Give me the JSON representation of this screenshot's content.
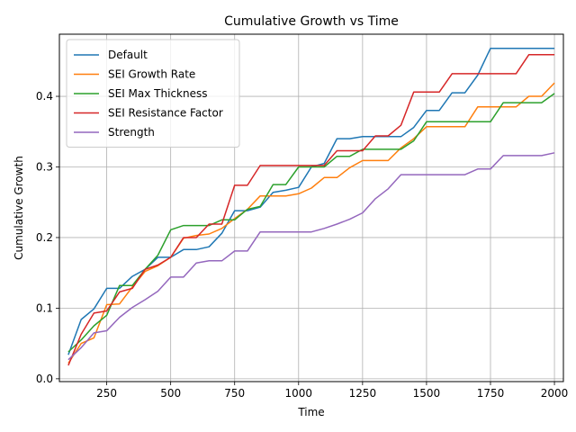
{
  "chart_data": {
    "type": "line",
    "title": "Cumulative Growth vs Time",
    "xlabel": "Time",
    "ylabel": "Cumulative Growth",
    "xlim": [
      65,
      2035
    ],
    "ylim": [
      -0.004,
      0.488
    ],
    "xticks": [
      250,
      500,
      750,
      1000,
      1250,
      1500,
      1750,
      2000
    ],
    "yticks": [
      0.0,
      0.1,
      0.2,
      0.3,
      0.4
    ],
    "xtick_labels": [
      "250",
      "500",
      "750",
      "1000",
      "1250",
      "1500",
      "1750",
      "2000"
    ],
    "ytick_labels": [
      "0.0",
      "0.1",
      "0.2",
      "0.3",
      "0.4"
    ],
    "grid": true,
    "legend_position": "top-left",
    "x": [
      100,
      150,
      200,
      250,
      300,
      350,
      400,
      450,
      500,
      550,
      600,
      650,
      700,
      750,
      800,
      850,
      900,
      950,
      1000,
      1050,
      1100,
      1150,
      1200,
      1250,
      1300,
      1350,
      1400,
      1450,
      1500,
      1550,
      1600,
      1650,
      1700,
      1750,
      1800,
      1850,
      1900,
      1950,
      2000
    ],
    "series": [
      {
        "name": "Default",
        "color": "#1f77b4",
        "values": [
          0.034,
          0.084,
          0.099,
          0.128,
          0.128,
          0.145,
          0.155,
          0.172,
          0.172,
          0.183,
          0.183,
          0.187,
          0.206,
          0.238,
          0.238,
          0.243,
          0.264,
          0.267,
          0.271,
          0.3,
          0.305,
          0.34,
          0.34,
          0.343,
          0.343,
          0.343,
          0.343,
          0.356,
          0.38,
          0.38,
          0.405,
          0.405,
          0.43,
          0.468,
          0.468,
          0.468,
          0.468,
          0.468,
          0.468
        ]
      },
      {
        "name": "SEI Growth Rate",
        "color": "#ff7f0e",
        "values": [
          0.022,
          0.05,
          0.058,
          0.105,
          0.106,
          0.13,
          0.152,
          0.16,
          0.172,
          0.199,
          0.203,
          0.205,
          0.213,
          0.227,
          0.24,
          0.259,
          0.259,
          0.259,
          0.262,
          0.27,
          0.285,
          0.285,
          0.299,
          0.309,
          0.309,
          0.309,
          0.327,
          0.34,
          0.357,
          0.357,
          0.357,
          0.357,
          0.385,
          0.385,
          0.385,
          0.385,
          0.4,
          0.4,
          0.419
        ]
      },
      {
        "name": "SEI Max Thickness",
        "color": "#2ca02c",
        "values": [
          0.038,
          0.055,
          0.075,
          0.09,
          0.132,
          0.132,
          0.155,
          0.175,
          0.211,
          0.217,
          0.217,
          0.217,
          0.225,
          0.225,
          0.24,
          0.244,
          0.275,
          0.275,
          0.3,
          0.3,
          0.3,
          0.315,
          0.315,
          0.325,
          0.325,
          0.325,
          0.325,
          0.337,
          0.364,
          0.364,
          0.364,
          0.364,
          0.364,
          0.364,
          0.391,
          0.391,
          0.391,
          0.391,
          0.404
        ]
      },
      {
        "name": "SEI Resistance Factor",
        "color": "#d62728",
        "values": [
          0.019,
          0.063,
          0.093,
          0.096,
          0.123,
          0.128,
          0.155,
          0.161,
          0.172,
          0.2,
          0.2,
          0.219,
          0.219,
          0.274,
          0.274,
          0.302,
          0.302,
          0.302,
          0.302,
          0.302,
          0.302,
          0.323,
          0.323,
          0.323,
          0.344,
          0.344,
          0.359,
          0.406,
          0.406,
          0.406,
          0.432,
          0.432,
          0.432,
          0.432,
          0.432,
          0.432,
          0.459,
          0.459,
          0.459
        ]
      },
      {
        "name": "Strength",
        "color": "#9467bd",
        "values": [
          0.027,
          0.044,
          0.065,
          0.068,
          0.087,
          0.101,
          0.112,
          0.124,
          0.144,
          0.144,
          0.164,
          0.167,
          0.167,
          0.181,
          0.181,
          0.208,
          0.208,
          0.208,
          0.208,
          0.208,
          0.213,
          0.219,
          0.226,
          0.235,
          0.255,
          0.269,
          0.289,
          0.289,
          0.289,
          0.289,
          0.289,
          0.289,
          0.297,
          0.297,
          0.316,
          0.316,
          0.316,
          0.316,
          0.32
        ]
      }
    ]
  }
}
